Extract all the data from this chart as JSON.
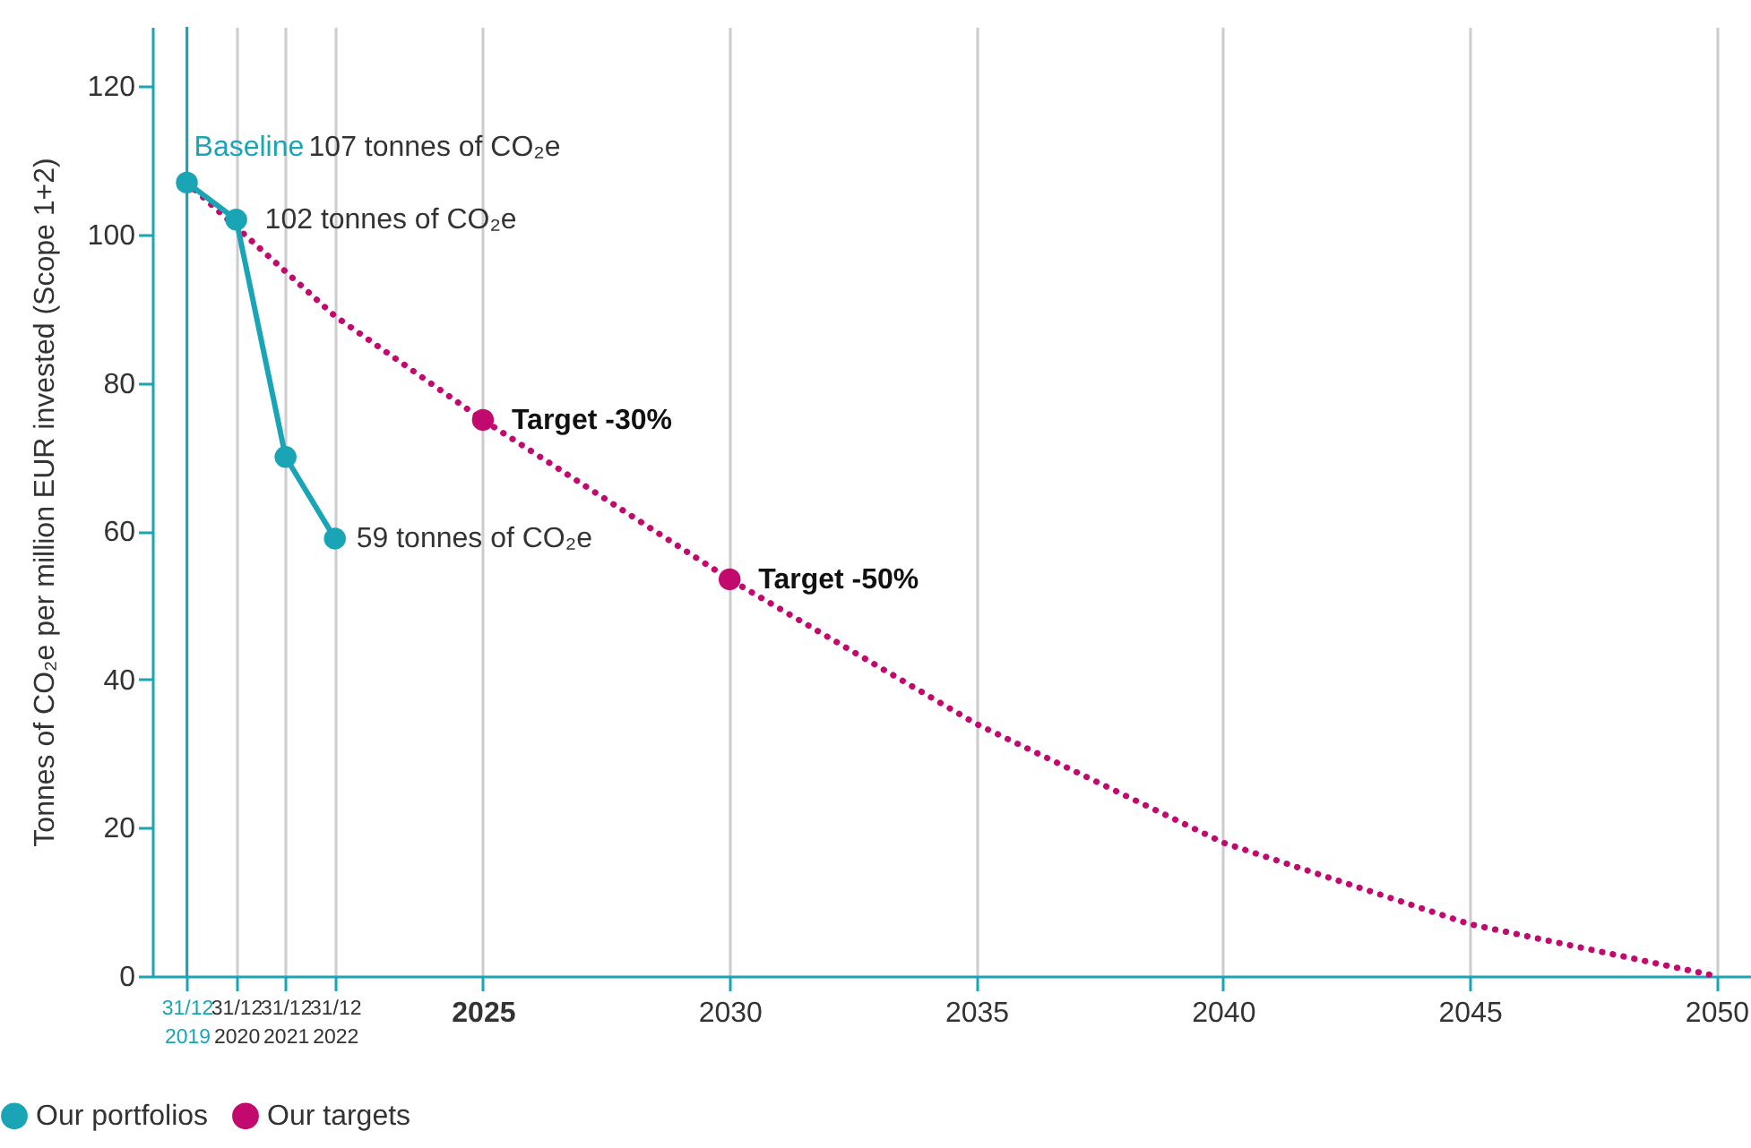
{
  "chart_data": {
    "type": "line",
    "ylabel": "Tonnes of CO₂e per million EUR invested (Scope 1+2)",
    "xlim": [
      2018.3,
      2050.7
    ],
    "xticks": [
      {
        "value": 2019,
        "label": "31/12\n2019"
      },
      {
        "value": 2020,
        "label": "31/12\n2020"
      },
      {
        "value": 2021,
        "label": "31/12\n2021"
      },
      {
        "value": 2022,
        "label": "31/12\n2022"
      },
      2025,
      2030,
      2035,
      2040,
      2045,
      2050
    ],
    "ylim": [
      0,
      128
    ],
    "yticks": [
      0,
      20,
      40,
      60,
      80,
      100,
      120
    ],
    "grid": "x",
    "legend": "bottom left",
    "series": [
      {
        "name": "Our portfolios",
        "color": "#19a5b6",
        "marker": "circle",
        "line_style": "solid",
        "x": [
          2019,
          2020,
          2021,
          2022
        ],
        "values": [
          107,
          102,
          70,
          59
        ]
      },
      {
        "color": "#c20a6e",
        "marker": "none",
        "line_style": "dotted",
        "x": [
          2019,
          2020,
          2021,
          2022,
          2025,
          2030,
          2035,
          2040,
          2045,
          2050
        ],
        "values": [
          107,
          101,
          95,
          89,
          75,
          53.5,
          34,
          18,
          7,
          0
        ]
      },
      {
        "name": "Our targets",
        "color": "#c20a6e",
        "type": "scatter",
        "marker": "circle",
        "x": [
          2025,
          2030
        ],
        "values": [
          75,
          53.5
        ]
      }
    ],
    "ref_lines": [
      {
        "axis": "x",
        "value": 2019,
        "color": "#19a5b6"
      }
    ],
    "annotations": [
      {
        "text": "Baseline",
        "x": 2019,
        "y": 107
      },
      "107 tonnes of CO₂e",
      {
        "text": "102 tonnes of CO₂e",
        "x": 2020,
        "y": 102
      },
      {
        "text": "59 tonnes of CO₂e",
        "x": 2022,
        "y": 59
      },
      {
        "text": "Target -30%",
        "x": 2025,
        "y": 75
      },
      {
        "text": "Target -50%",
        "x": 2030,
        "y": 53.5
      }
    ]
  }
}
